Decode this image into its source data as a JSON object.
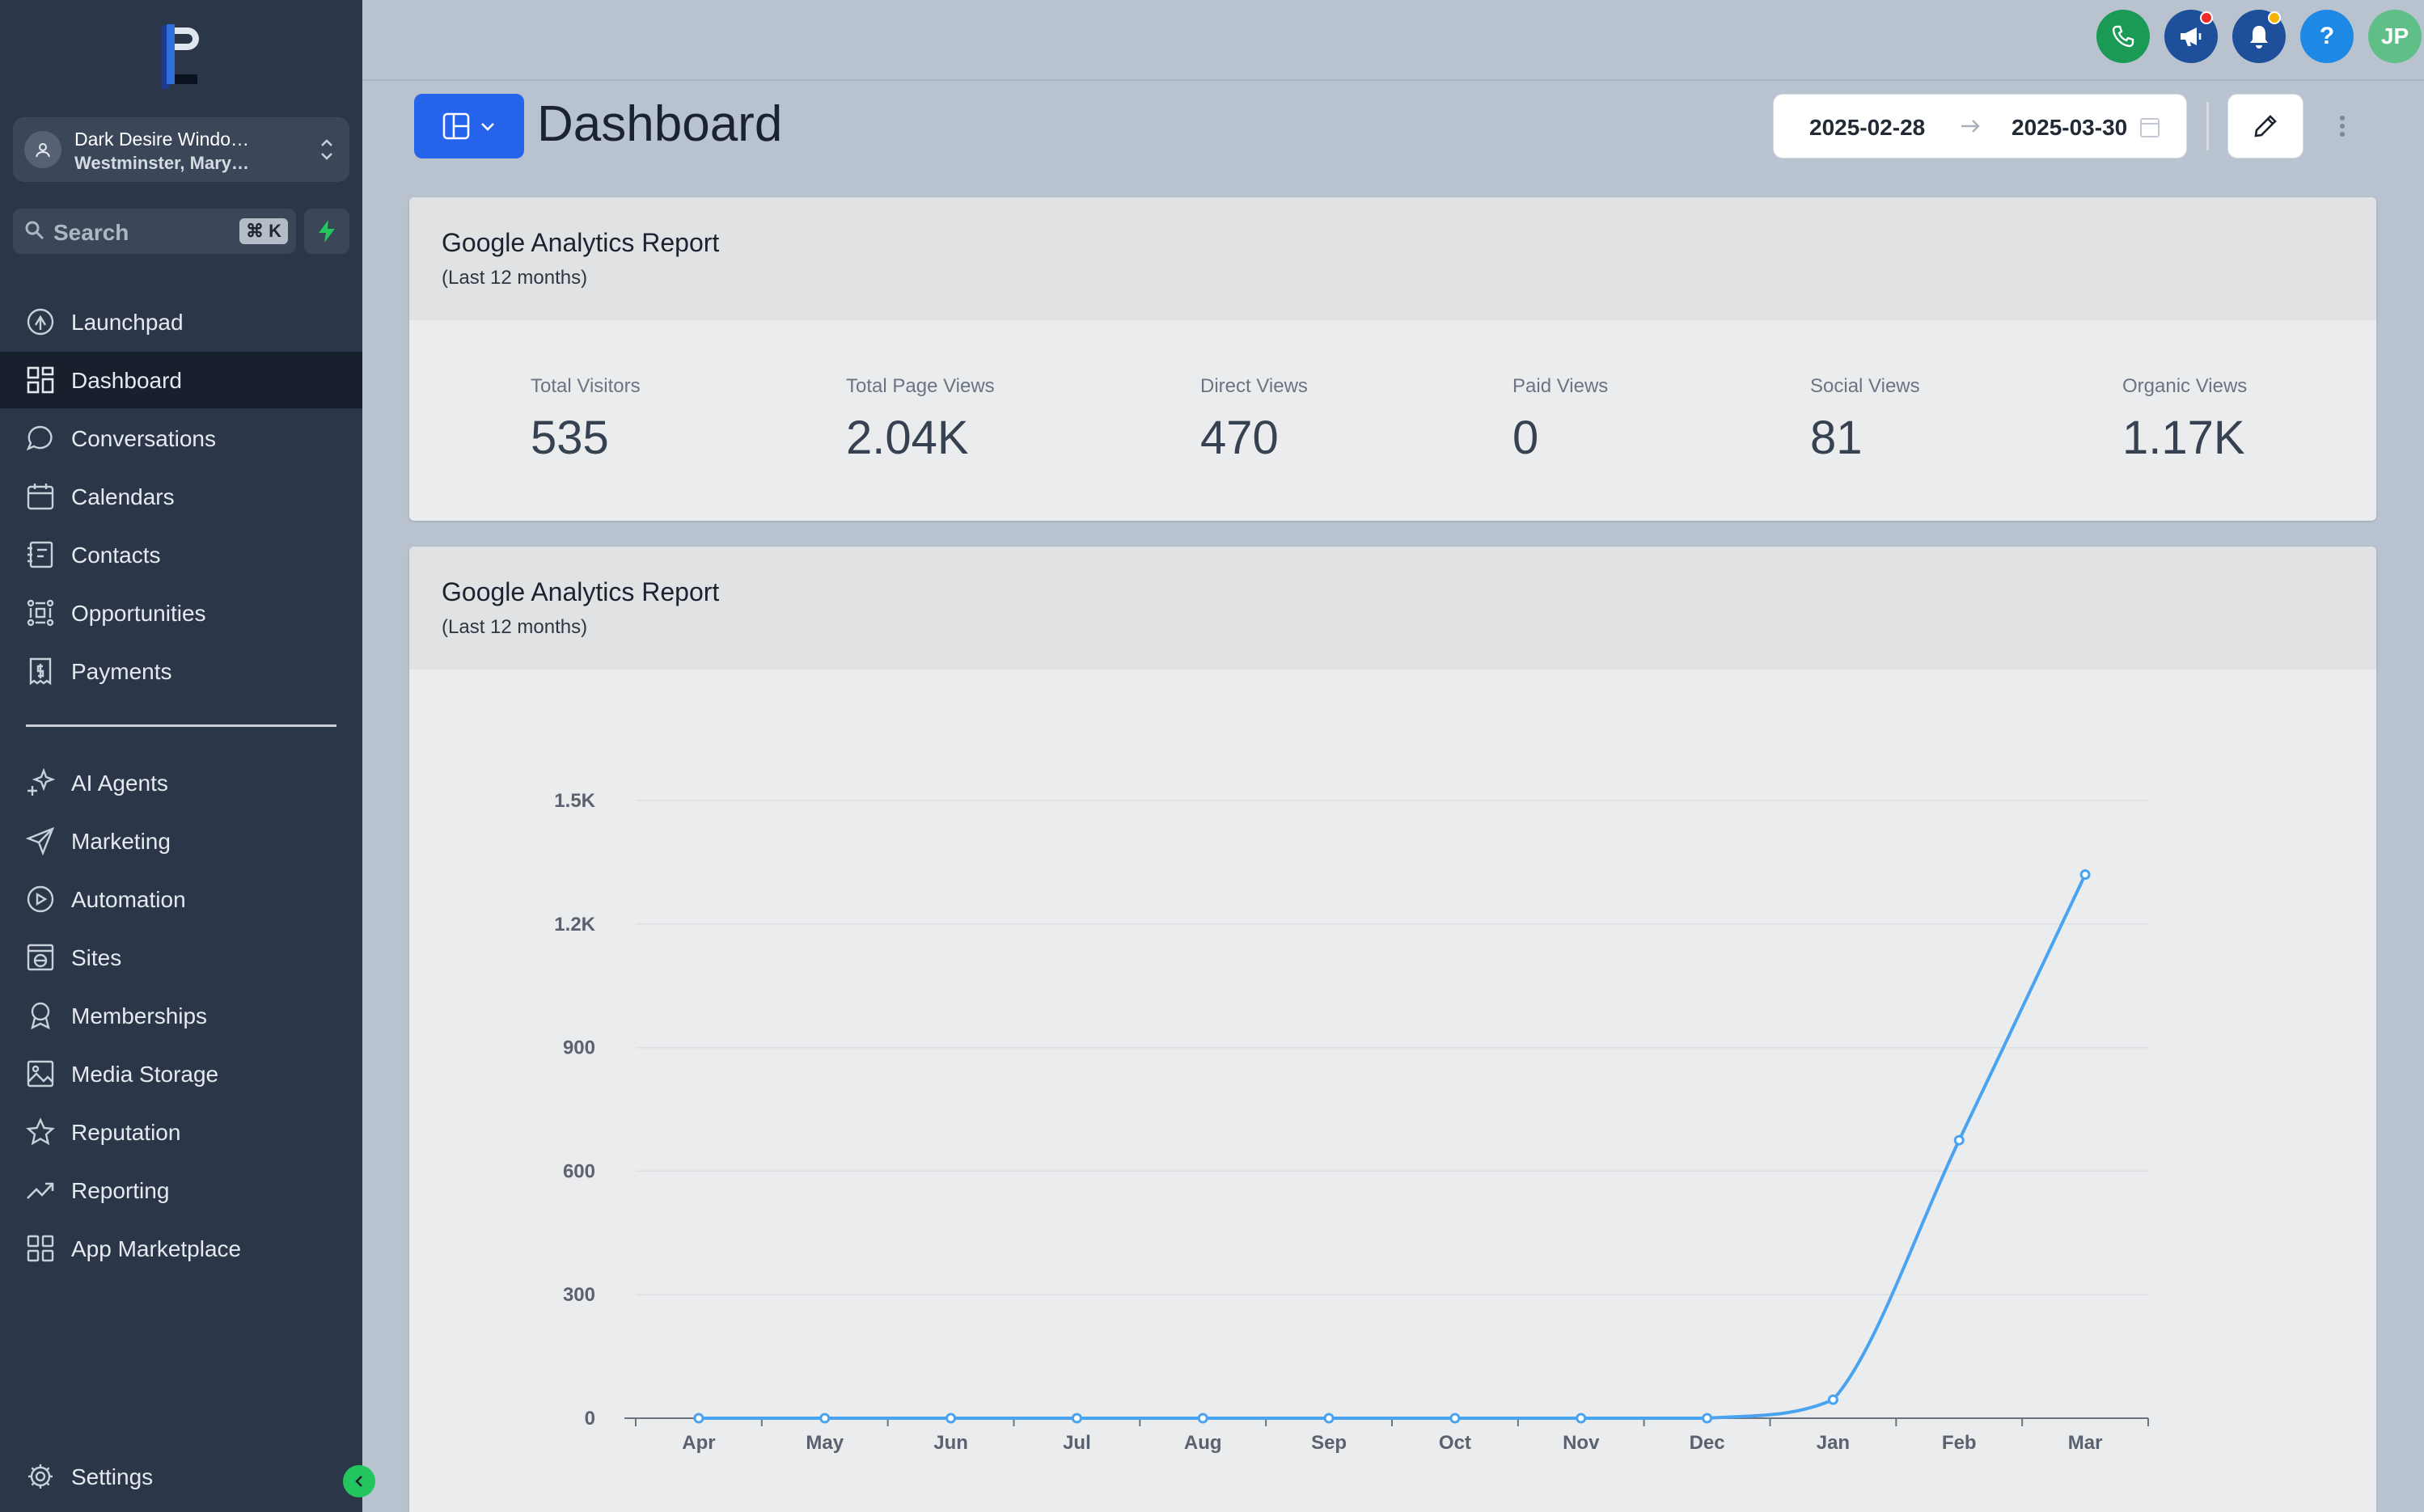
{
  "sidebar": {
    "account": {
      "name": "Dark Desire Windo…",
      "location": "Westminster, Mary…"
    },
    "search": {
      "placeholder": "Search",
      "shortcut": "⌘ K"
    },
    "items": [
      {
        "label": "Launchpad",
        "icon": "launchpad-icon"
      },
      {
        "label": "Dashboard",
        "icon": "dashboard-grid-icon",
        "active": true
      },
      {
        "label": "Conversations",
        "icon": "chat-bubble-icon"
      },
      {
        "label": "Calendars",
        "icon": "calendar-icon"
      },
      {
        "label": "Contacts",
        "icon": "contacts-book-icon"
      },
      {
        "label": "Opportunities",
        "icon": "opportunities-icon"
      },
      {
        "label": "Payments",
        "icon": "payments-icon"
      }
    ],
    "items2": [
      {
        "label": "AI Agents",
        "icon": "sparkle-icon"
      },
      {
        "label": "Marketing",
        "icon": "paper-plane-icon"
      },
      {
        "label": "Automation",
        "icon": "automation-icon"
      },
      {
        "label": "Sites",
        "icon": "globe-window-icon"
      },
      {
        "label": "Memberships",
        "icon": "award-icon"
      },
      {
        "label": "Media Storage",
        "icon": "image-icon"
      },
      {
        "label": "Reputation",
        "icon": "star-icon"
      },
      {
        "label": "Reporting",
        "icon": "trending-up-icon"
      },
      {
        "label": "App Marketplace",
        "icon": "apps-grid-icon"
      }
    ],
    "settings_label": "Settings"
  },
  "topbar": {
    "avatar_initials": "JP"
  },
  "header": {
    "title": "Dashboard",
    "date_start": "2025-02-28",
    "date_end": "2025-03-30"
  },
  "stats_card": {
    "title": "Google Analytics Report",
    "subtitle": "(Last 12 months)",
    "stats": [
      {
        "label": "Total Visitors",
        "value": "535"
      },
      {
        "label": "Total Page Views",
        "value": "2.04K"
      },
      {
        "label": "Direct Views",
        "value": "470"
      },
      {
        "label": "Paid Views",
        "value": "0"
      },
      {
        "label": "Social Views",
        "value": "81"
      },
      {
        "label": "Organic Views",
        "value": "1.17K"
      }
    ]
  },
  "chart_card": {
    "title": "Google Analytics Report",
    "subtitle": "(Last 12 months)"
  },
  "colors": {
    "sidebar_bg": "#2b3649",
    "accent_blue": "#2563eb",
    "line_series": "#4aa3f0",
    "phone_green": "#1a9a55"
  },
  "chart_data": {
    "type": "line",
    "categories": [
      "Apr",
      "May",
      "Jun",
      "Jul",
      "Aug",
      "Sep",
      "Oct",
      "Nov",
      "Dec",
      "Jan",
      "Feb",
      "Mar"
    ],
    "values": [
      0,
      0,
      0,
      0,
      0,
      0,
      0,
      0,
      0,
      45,
      675,
      1320
    ],
    "yticks": [
      "0",
      "300",
      "600",
      "900",
      "1.2K",
      "1.5K"
    ],
    "ytick_values": [
      0,
      300,
      600,
      900,
      1200,
      1500
    ],
    "ylim": [
      0,
      1500
    ],
    "grid": true,
    "title": "",
    "xlabel": "",
    "ylabel": ""
  }
}
